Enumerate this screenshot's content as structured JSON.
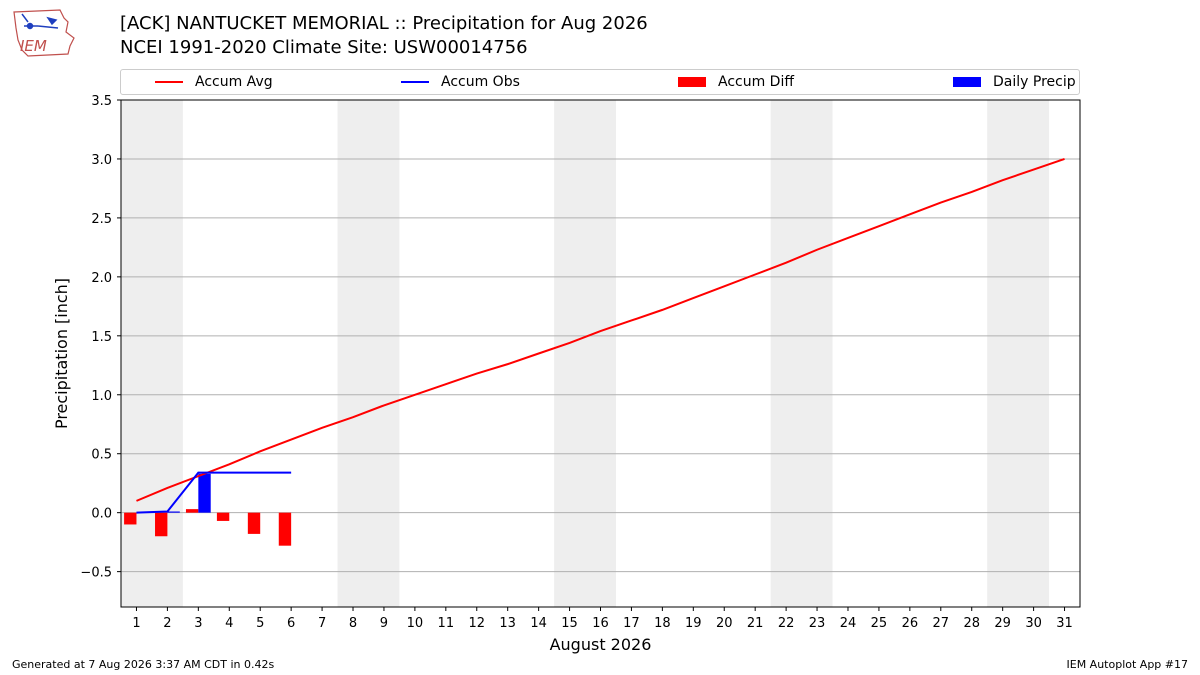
{
  "header": {
    "title_line1": "[ACK] NANTUCKET MEMORIAL :: Precipitation for Aug 2026",
    "title_line2": "NCEI 1991-2020 Climate Site: USW00014756",
    "logo_text": "IEM"
  },
  "footer": {
    "left": "Generated at 7 Aug 2026 3:37 AM CDT in 0.42s",
    "right": "IEM Autoplot App #17"
  },
  "legend": {
    "position": "top",
    "items": [
      {
        "label": "Accum Avg",
        "kind": "line",
        "color": "#ff0000"
      },
      {
        "label": "Accum Obs",
        "kind": "line",
        "color": "#0000ff"
      },
      {
        "label": "Accum Diff",
        "kind": "box",
        "color": "#ff0000"
      },
      {
        "label": "Daily Precip",
        "kind": "box",
        "color": "#0000ff"
      }
    ]
  },
  "chart_data": {
    "type": "line",
    "title": "[ACK] NANTUCKET MEMORIAL :: Precipitation for Aug 2026",
    "subtitle": "NCEI 1991-2020 Climate Site: USW00014756",
    "xlabel": "August 2026",
    "ylabel": "Precipitation [inch]",
    "xlim": [
      0.5,
      31.5
    ],
    "ylim": [
      -0.8,
      3.5
    ],
    "grid": true,
    "x": [
      1,
      2,
      3,
      4,
      5,
      6,
      7,
      8,
      9,
      10,
      11,
      12,
      13,
      14,
      15,
      16,
      17,
      18,
      19,
      20,
      21,
      22,
      23,
      24,
      25,
      26,
      27,
      28,
      29,
      30,
      31
    ],
    "yticks": [
      "−0.5",
      "0.0",
      "0.5",
      "1.0",
      "1.5",
      "2.0",
      "2.5",
      "3.0",
      "3.5"
    ],
    "ytick_values": [
      -0.5,
      0.0,
      0.5,
      1.0,
      1.5,
      2.0,
      2.5,
      3.0,
      3.5
    ],
    "weekend_shading": [
      [
        0.5,
        2.5
      ],
      [
        7.5,
        9.5
      ],
      [
        14.5,
        16.5
      ],
      [
        21.5,
        23.5
      ],
      [
        28.5,
        30.5
      ]
    ],
    "shade_color": "#eeeeee",
    "series": [
      {
        "name": "Accum Avg",
        "kind": "line",
        "color": "#ff0000",
        "x": [
          1,
          2,
          3,
          4,
          5,
          6,
          7,
          8,
          9,
          10,
          11,
          12,
          13,
          14,
          15,
          16,
          17,
          18,
          19,
          20,
          21,
          22,
          23,
          24,
          25,
          26,
          27,
          28,
          29,
          30,
          31
        ],
        "values": [
          0.1,
          0.21,
          0.31,
          0.41,
          0.52,
          0.62,
          0.72,
          0.81,
          0.91,
          1.0,
          1.09,
          1.18,
          1.26,
          1.35,
          1.44,
          1.54,
          1.63,
          1.72,
          1.82,
          1.92,
          2.02,
          2.12,
          2.23,
          2.33,
          2.43,
          2.53,
          2.63,
          2.72,
          2.82,
          2.91,
          3.0
        ]
      },
      {
        "name": "Accum Obs",
        "kind": "line",
        "color": "#0000ff",
        "x": [
          1,
          2,
          3,
          4,
          5,
          6
        ],
        "values": [
          0.0,
          0.01,
          0.34,
          0.34,
          0.34,
          0.34
        ]
      },
      {
        "name": "Accum Diff",
        "kind": "bar",
        "color": "#ff0000",
        "x": [
          1,
          2,
          3,
          4,
          5,
          6
        ],
        "values": [
          -0.1,
          -0.2,
          0.03,
          -0.07,
          -0.18,
          -0.28
        ]
      },
      {
        "name": "Daily Precip",
        "kind": "bar",
        "color": "#0000ff",
        "x": [
          1,
          2,
          3,
          4,
          5,
          6
        ],
        "values": [
          0.0,
          0.01,
          0.33,
          0.0,
          0.0,
          0.0
        ]
      }
    ]
  }
}
